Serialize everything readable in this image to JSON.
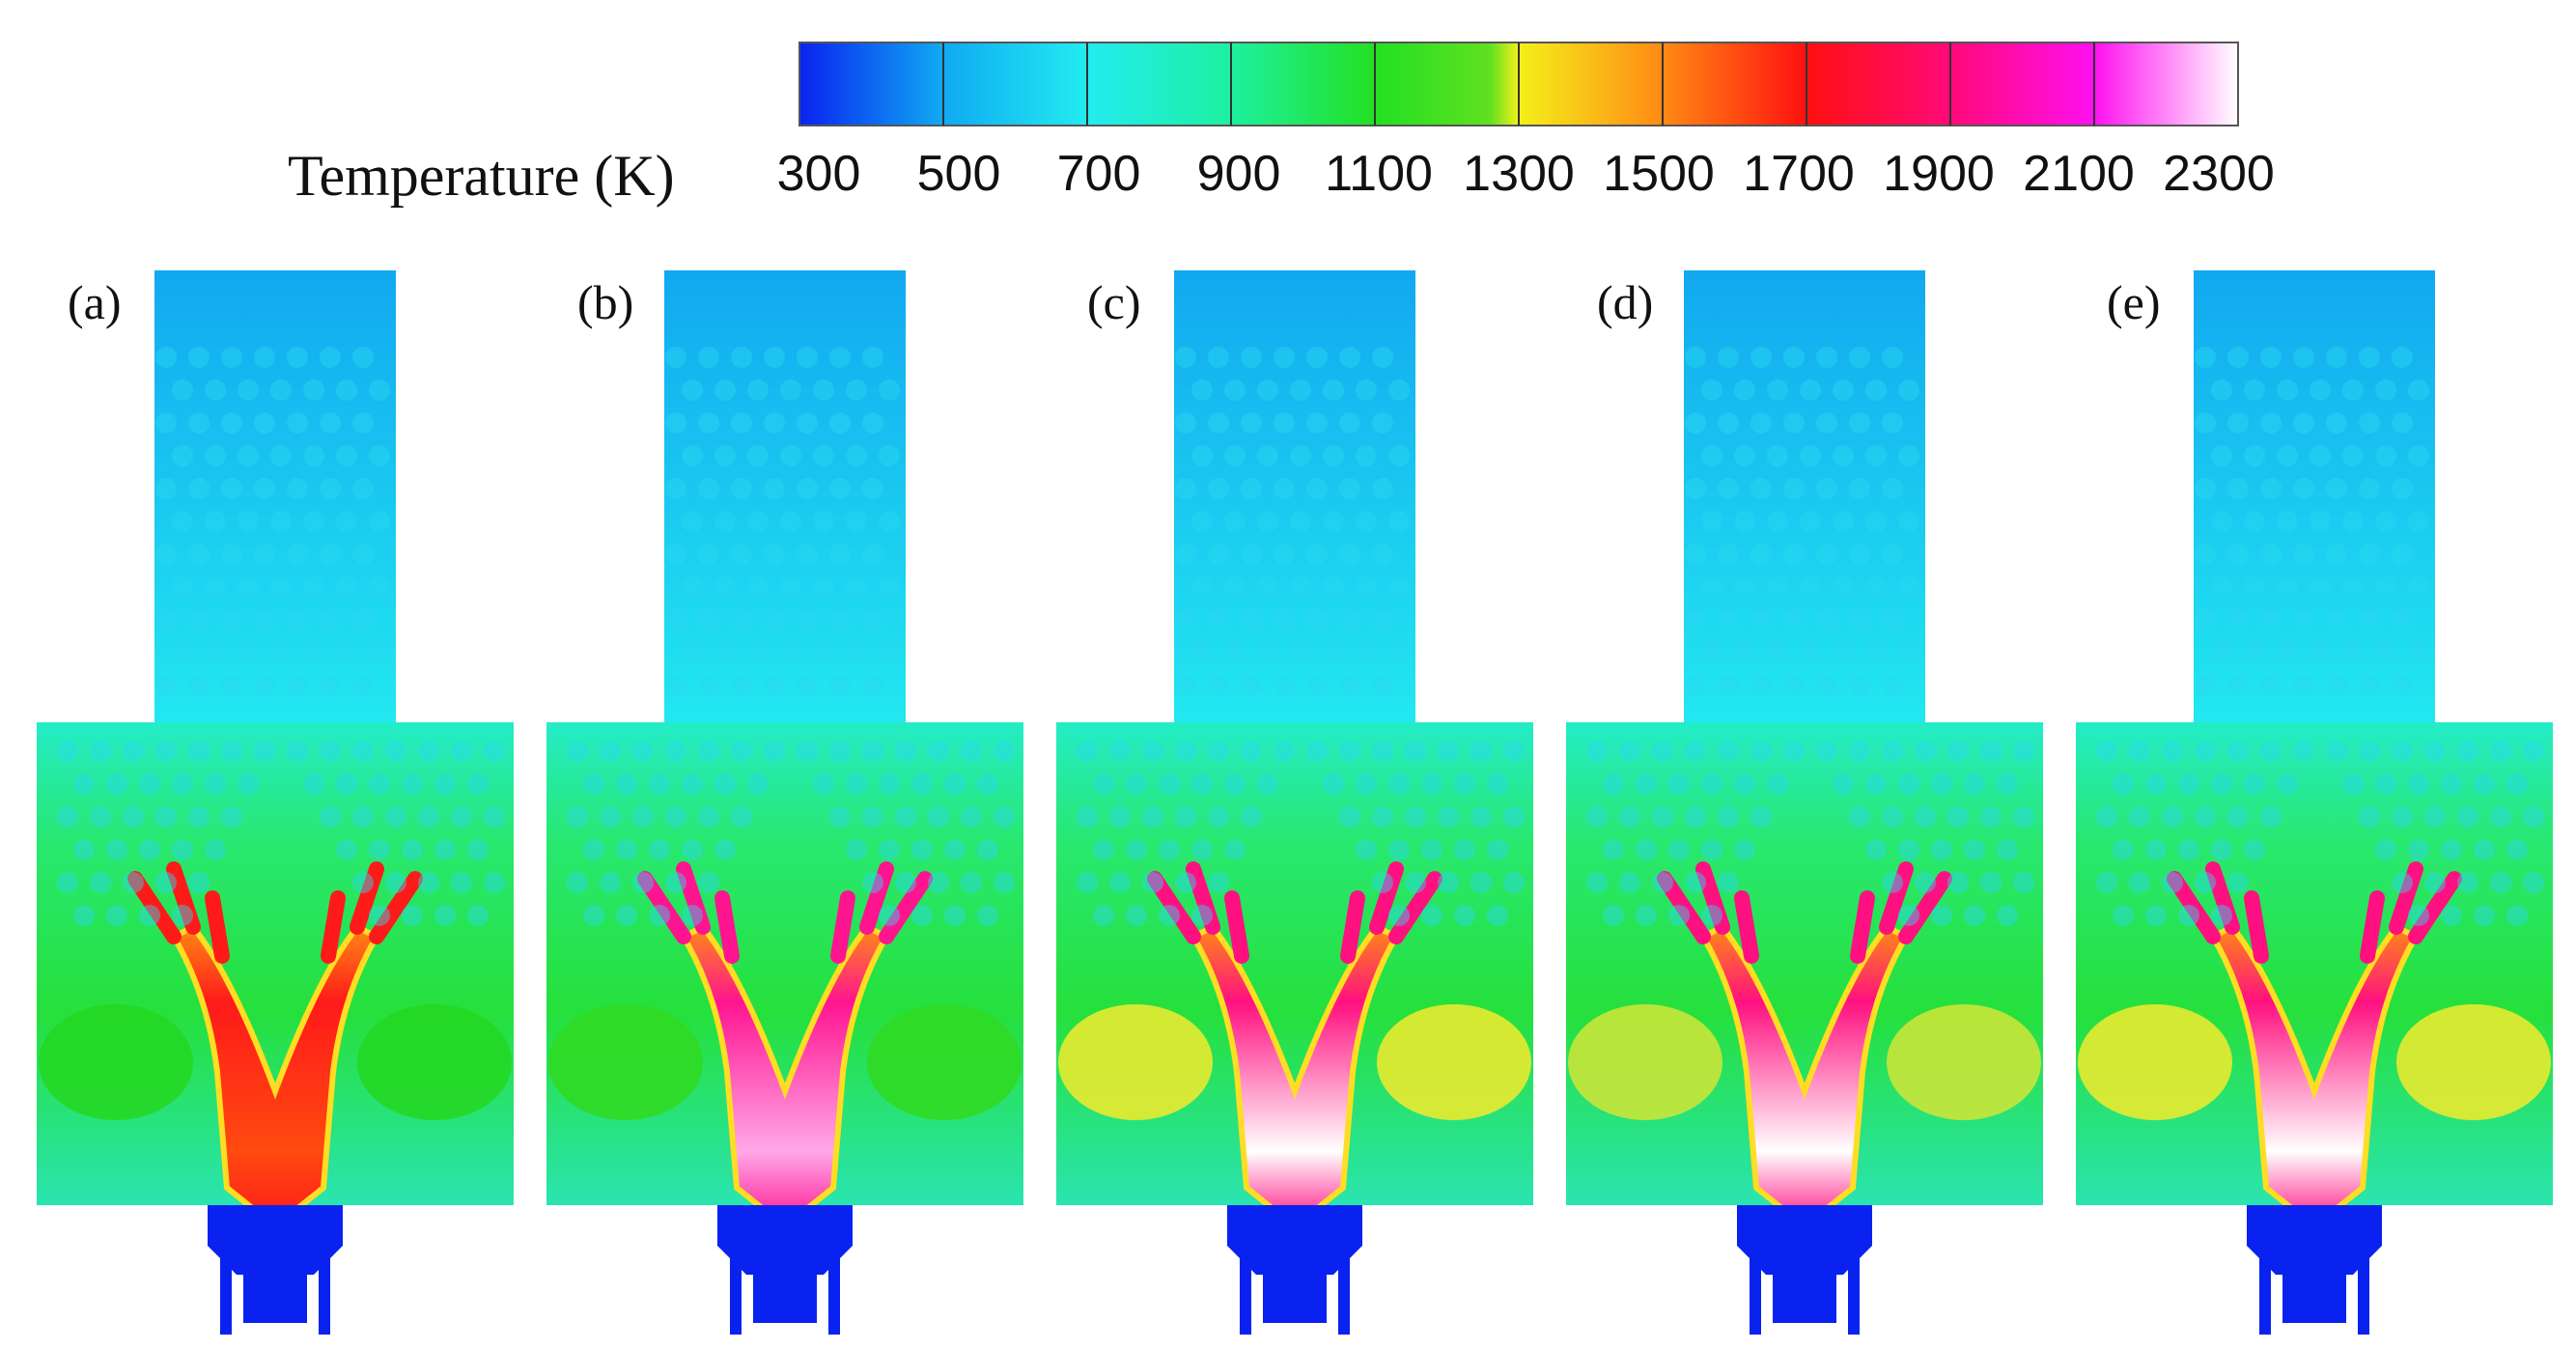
{
  "colorbar": {
    "title": "Temperature (K)",
    "ticks": [
      "300",
      "500",
      "700",
      "900",
      "1100",
      "1300",
      "1500",
      "1700",
      "1900",
      "2100",
      "2300"
    ],
    "colors": [
      "#0a22f0",
      "#10aaf2",
      "#22ecf0",
      "#1ef0a0",
      "#22e022",
      "#20dc20",
      "#f4f01a",
      "#ff8a14",
      "#ff1010",
      "#ff0a78",
      "#ff10f0",
      "#ffffff"
    ]
  },
  "panels": [
    {
      "label": "(a)",
      "peak": "#ff1a1a",
      "core": "#ff4a10",
      "wing": "#24d824"
    },
    {
      "label": "(b)",
      "peak": "#ff1490",
      "core": "#ffa8e8",
      "wing": "#30da22"
    },
    {
      "label": "(c)",
      "peak": "#ff1080",
      "core": "#ffffff",
      "wing": "#e8ea30"
    },
    {
      "label": "(d)",
      "peak": "#ff1080",
      "core": "#ffffff",
      "wing": "#c8e63a"
    },
    {
      "label": "(e)",
      "peak": "#ff1080",
      "core": "#ffffff",
      "wing": "#e8ea30"
    }
  ]
}
